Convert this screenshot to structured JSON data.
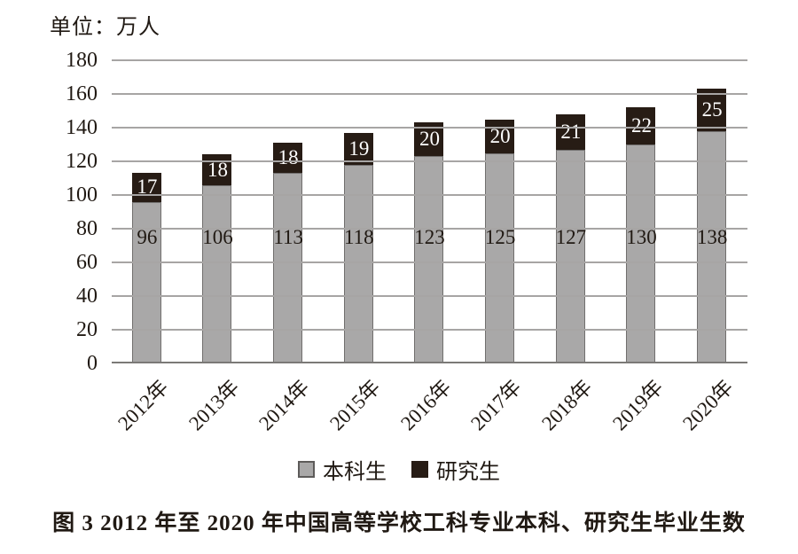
{
  "unit_label": "单位：万人",
  "caption": "图 3  2012 年至 2020 年中国高等学校工科专业本科、研究生毕业生数",
  "legend": [
    {
      "label": "本科生",
      "color": "#a9a8a8"
    },
    {
      "label": "研究生",
      "color": "#271c15"
    }
  ],
  "colors": {
    "undergrad_fill": "#a9a8a8",
    "undergrad_border": "#716f6e",
    "grad_fill": "#271c15",
    "gridline": "#a7a5a4",
    "axis": "#7b7977",
    "label_dark": "#201913",
    "label_light": "#ffffff"
  },
  "chart_data": {
    "type": "bar",
    "stacked": true,
    "title": "单位：万人",
    "categories": [
      "2012年",
      "2013年",
      "2014年",
      "2015年",
      "2016年",
      "2017年",
      "2018年",
      "2019年",
      "2020年"
    ],
    "series": [
      {
        "name": "本科生",
        "color": "#a9a8a8",
        "values": [
          96,
          106,
          113,
          118,
          123,
          125,
          127,
          130,
          138
        ]
      },
      {
        "name": "研究生",
        "color": "#271c15",
        "values": [
          17,
          18,
          18,
          19,
          20,
          20,
          21,
          22,
          25
        ]
      }
    ],
    "totals": [
      113,
      124,
      131,
      137,
      143,
      145,
      148,
      152,
      163
    ],
    "xlabel": "",
    "ylabel": "万人",
    "ylim": [
      0,
      180
    ],
    "ytick_step": 20,
    "yticks": [
      0,
      20,
      40,
      60,
      80,
      100,
      120,
      140,
      160,
      180
    ],
    "grid": true,
    "gridlines_over_bars": true,
    "value_labels": "inside",
    "legend_position": "bottom",
    "x_tick_rotation": -45
  }
}
